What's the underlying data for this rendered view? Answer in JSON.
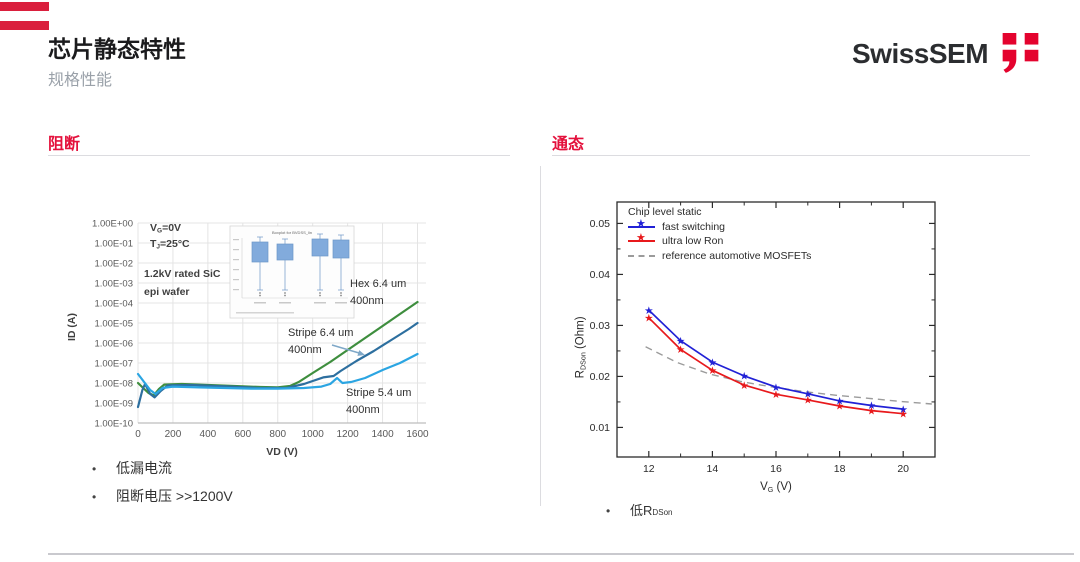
{
  "brand": {
    "logo_text": "SwissSEM",
    "logo_red": "#e4032e",
    "bar_red": "#da1f3d",
    "accent_red": "#e4113c"
  },
  "header": {
    "title": "芯片静态特性",
    "subtitle": "规格性能"
  },
  "sections": {
    "left": {
      "heading": "阻断",
      "bullets": [
        "低漏电流",
        "阻断电压 >>1200V"
      ],
      "bullet_glyph": "•"
    },
    "right": {
      "heading": "通态",
      "bullet_glyph": "•",
      "bullet_prefix": "低R",
      "bullet_sub": "DSon"
    }
  },
  "chart_data": [
    {
      "type": "line",
      "name": "blocking-leakage-curves",
      "xlabel": "VD (V)",
      "ylabel": "ID (A)",
      "y_scale": "log",
      "xlim": [
        0,
        1600
      ],
      "x_ticks": [
        0,
        200,
        400,
        600,
        800,
        1000,
        1200,
        1400,
        1600
      ],
      "y_tick_labels": [
        "1.00E+00",
        "1.00E-01",
        "1.00E-02",
        "1.00E-03",
        "1.00E-04",
        "1.00E-05",
        "1.00E-06",
        "1.00E-07",
        "1.00E-08",
        "1.00E-09",
        "1.00E-10"
      ],
      "grid": true,
      "annotations": {
        "vg": {
          "base": "V",
          "sub": "G",
          "rest": "=0V"
        },
        "tj": {
          "base": "T",
          "sub": "J",
          "rest": "=25°C"
        },
        "wafer_line1": "1.2kV rated SiC",
        "wafer_line2": "epi wafer"
      },
      "series": [
        {
          "name": "Hex 6.4 um 400nm",
          "label_lines": [
            "Hex 6.4 um",
            "400nm"
          ],
          "color": "#3e8e3e",
          "points_v_log10A": [
            [
              0,
              -8.0
            ],
            [
              30,
              -8.25
            ],
            [
              60,
              -8.5
            ],
            [
              90,
              -8.62
            ],
            [
              120,
              -8.3
            ],
            [
              150,
              -8.08
            ],
            [
              250,
              -8.05
            ],
            [
              400,
              -8.1
            ],
            [
              550,
              -8.15
            ],
            [
              700,
              -8.2
            ],
            [
              800,
              -8.22
            ],
            [
              870,
              -8.15
            ],
            [
              920,
              -7.95
            ],
            [
              1000,
              -7.5
            ],
            [
              1100,
              -6.95
            ],
            [
              1200,
              -6.35
            ],
            [
              1300,
              -5.75
            ],
            [
              1400,
              -5.15
            ],
            [
              1500,
              -4.55
            ],
            [
              1600,
              -3.95
            ]
          ]
        },
        {
          "name": "Stripe 6.4 um 400nm",
          "label_lines": [
            "Stripe 6.4 um",
            "400nm"
          ],
          "color": "#2d6f9f",
          "points_v_log10A": [
            [
              0,
              -9.2
            ],
            [
              25,
              -8.35
            ],
            [
              40,
              -8.05
            ],
            [
              70,
              -8.55
            ],
            [
              95,
              -8.72
            ],
            [
              130,
              -8.4
            ],
            [
              170,
              -8.12
            ],
            [
              300,
              -8.1
            ],
            [
              500,
              -8.17
            ],
            [
              700,
              -8.25
            ],
            [
              850,
              -8.25
            ],
            [
              950,
              -8.05
            ],
            [
              1000,
              -7.9
            ],
            [
              1060,
              -7.72
            ],
            [
              1120,
              -7.65
            ],
            [
              1160,
              -7.4
            ],
            [
              1250,
              -6.9
            ],
            [
              1350,
              -6.4
            ],
            [
              1450,
              -5.85
            ],
            [
              1550,
              -5.3
            ],
            [
              1600,
              -5.0
            ]
          ]
        },
        {
          "name": "Stripe 5.4 um 400nm",
          "label_lines": [
            "Stripe 5.4 um",
            "400nm"
          ],
          "color": "#2ba5e2",
          "points_v_log10A": [
            [
              0,
              -7.55
            ],
            [
              35,
              -7.95
            ],
            [
              70,
              -8.35
            ],
            [
              100,
              -8.55
            ],
            [
              140,
              -8.25
            ],
            [
              200,
              -8.18
            ],
            [
              350,
              -8.22
            ],
            [
              500,
              -8.25
            ],
            [
              650,
              -8.28
            ],
            [
              800,
              -8.28
            ],
            [
              950,
              -8.25
            ],
            [
              1050,
              -8.18
            ],
            [
              1100,
              -8.05
            ],
            [
              1140,
              -7.75
            ],
            [
              1170,
              -8.0
            ],
            [
              1220,
              -7.95
            ],
            [
              1300,
              -7.75
            ],
            [
              1400,
              -7.35
            ],
            [
              1500,
              -7.0
            ],
            [
              1600,
              -6.55
            ]
          ]
        }
      ],
      "inset": {
        "title": "Boxplot for BVDSS_lin",
        "box_color": "#82abdc",
        "box_count": 4
      }
    },
    {
      "type": "line",
      "name": "rdson-vs-vg",
      "legend_title": "Chip level static",
      "legend_position": "top-left",
      "xlabel_base": "V",
      "xlabel_sub": "G",
      "xlabel_rest": " (V)",
      "ylabel_base": "R",
      "ylabel_sub": "DSon",
      "ylabel_rest": " (Ohm)",
      "xlim": [
        11,
        21
      ],
      "ylim": [
        0.0042,
        0.0542
      ],
      "x_major_ticks": [
        12,
        14,
        16,
        18,
        20
      ],
      "x_minor_ticks": [
        13,
        15,
        17,
        19
      ],
      "y_major_ticks": [
        0.01,
        0.02,
        0.03,
        0.04,
        0.05
      ],
      "y_minor_ticks": [
        0.015,
        0.025,
        0.035,
        0.045
      ],
      "grid": false,
      "series": [
        {
          "name": "fast switching",
          "color": "#2121d6",
          "marker": "star",
          "x": [
            12,
            13,
            14,
            15,
            16,
            17,
            18,
            19,
            20
          ],
          "y": [
            0.033,
            0.027,
            0.0228,
            0.0201,
            0.0179,
            0.0166,
            0.0152,
            0.0143,
            0.0136
          ]
        },
        {
          "name": "ultra low Ron",
          "color": "#e8191c",
          "marker": "star",
          "x": [
            12,
            13,
            14,
            15,
            16,
            17,
            18,
            19,
            20
          ],
          "y": [
            0.0315,
            0.0253,
            0.0212,
            0.0183,
            0.0165,
            0.0154,
            0.0142,
            0.0133,
            0.0127
          ]
        },
        {
          "name": "reference automotive MOSFETs",
          "color": "#9b9b9b",
          "dashed": true,
          "x": [
            11.9,
            12.9,
            13.9,
            14.9,
            15.9,
            16.9,
            17.9,
            18.9,
            19.9,
            20.9
          ],
          "y": [
            0.0258,
            0.0227,
            0.0205,
            0.019,
            0.0179,
            0.017,
            0.0163,
            0.0157,
            0.0151,
            0.0146
          ]
        }
      ]
    }
  ]
}
